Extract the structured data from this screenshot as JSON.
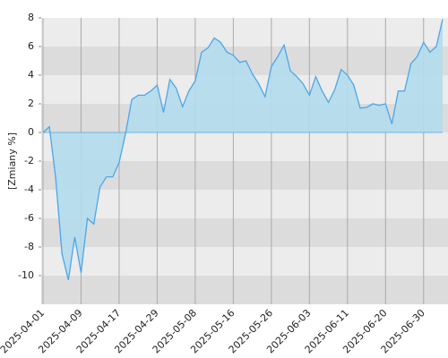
{
  "chart_data": {
    "type": "area",
    "y_label": "[Zmiany %]",
    "categories": [
      "2025-04-01",
      null,
      null,
      null,
      null,
      null,
      "2025-04-09",
      null,
      null,
      null,
      null,
      null,
      "2025-04-17",
      null,
      null,
      null,
      null,
      null,
      "2025-04-29",
      null,
      null,
      null,
      null,
      null,
      "2025-05-08",
      null,
      null,
      null,
      null,
      null,
      "2025-05-16",
      null,
      null,
      null,
      null,
      null,
      "2025-05-26",
      null,
      null,
      null,
      null,
      null,
      "2025-06-03",
      null,
      null,
      null,
      null,
      null,
      "2025-06-11",
      null,
      null,
      null,
      null,
      null,
      "2025-06-20",
      null,
      null,
      null,
      null,
      null,
      "2025-06-30",
      null,
      null,
      null
    ],
    "series": [
      {
        "color": "#4da6e8",
        "fill": "#b3dced",
        "values": [
          0,
          0.4,
          -3.2,
          -8.5,
          -10.3,
          -7.3,
          -9.8,
          -6.0,
          -6.4,
          -3.8,
          -3.1,
          -3.1,
          -2.1,
          -0.1,
          2.3,
          2.6,
          2.6,
          2.9,
          3.3,
          1.4,
          3.7,
          3.1,
          1.8,
          2.9,
          3.6,
          5.6,
          5.9,
          6.6,
          6.3,
          5.6,
          5.4,
          4.9,
          5.0,
          4.1,
          3.4,
          2.5,
          4.6,
          5.3,
          6.1,
          4.3,
          3.9,
          3.4,
          2.6,
          3.9,
          2.9,
          2.1,
          3.0,
          4.4,
          4.0,
          3.3,
          1.7,
          1.75,
          2.0,
          1.9,
          2.0,
          0.6,
          2.9,
          2.9,
          4.8,
          5.3,
          6.3,
          5.6,
          6.0,
          7.9
        ]
      }
    ],
    "ylim": [
      -12,
      8
    ],
    "yticks": [
      -10,
      -8,
      -6,
      -4,
      -2,
      0,
      2,
      4,
      6,
      8
    ],
    "bands": [
      "#dcdcdc",
      "#ececec"
    ],
    "grid": true
  }
}
